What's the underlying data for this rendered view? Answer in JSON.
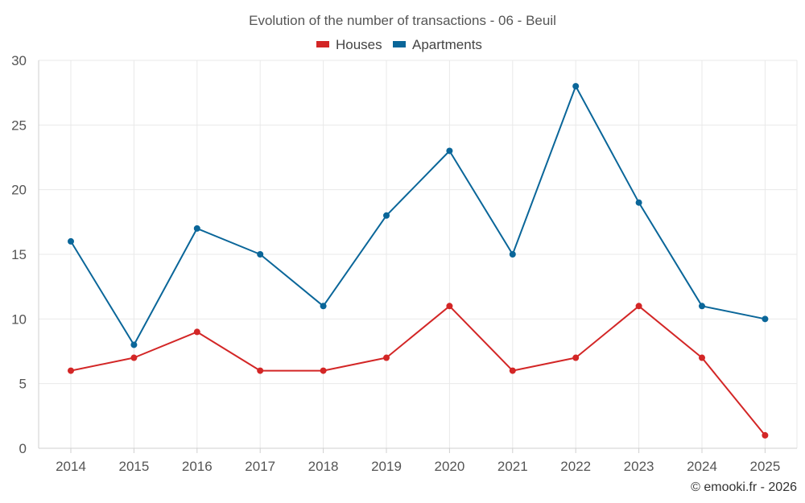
{
  "chart_data": {
    "type": "line",
    "title": "Evolution of the number of transactions - 06 - Beuil",
    "categories": [
      "2014",
      "2015",
      "2016",
      "2017",
      "2018",
      "2019",
      "2020",
      "2021",
      "2022",
      "2023",
      "2024",
      "2025"
    ],
    "series": [
      {
        "name": "Houses",
        "color": "#d32626",
        "values": [
          6,
          7,
          9,
          6,
          6,
          7,
          11,
          6,
          7,
          11,
          7,
          1
        ]
      },
      {
        "name": "Apartments",
        "color": "#0a6699",
        "values": [
          16,
          8,
          17,
          15,
          11,
          18,
          23,
          15,
          28,
          19,
          11,
          10
        ]
      }
    ],
    "ylim": [
      0,
      30
    ],
    "yticks": [
      "0",
      "5",
      "10",
      "15",
      "20",
      "25",
      "30"
    ],
    "xlabel": "",
    "ylabel": "",
    "grid": true,
    "legend_position": "top-center",
    "credit": "© emooki.fr - 2026"
  }
}
